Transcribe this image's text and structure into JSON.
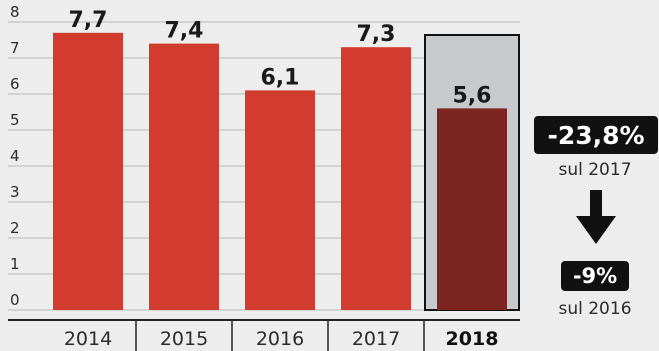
{
  "chart_data": {
    "type": "bar",
    "categories": [
      "2014",
      "2015",
      "2016",
      "2017",
      "2018"
    ],
    "values": [
      7.7,
      7.4,
      6.1,
      7.3,
      5.6
    ],
    "value_labels": [
      "7,7",
      "7,4",
      "6,1",
      "7,3",
      "5,6"
    ],
    "highlight": "2018",
    "yticks": [
      0,
      1,
      2,
      3,
      4,
      5,
      6,
      7,
      8
    ],
    "ylim": [
      0,
      8
    ],
    "grid": true,
    "title": "",
    "xlabel": "",
    "ylabel": ""
  },
  "colors": {
    "bar": "#d23c2f",
    "bar_highlight": "#7b2420",
    "highlight_band": "#c7cacd",
    "grid": "#b8b8b8",
    "background": "#ededed"
  },
  "annotations": {
    "change_vs_2017": "-23,8%",
    "change_vs_2017_label": "sul 2017",
    "change_vs_2016": "-9%",
    "change_vs_2016_label": "sul 2016",
    "arrow_icon": "arrow-down-icon"
  }
}
